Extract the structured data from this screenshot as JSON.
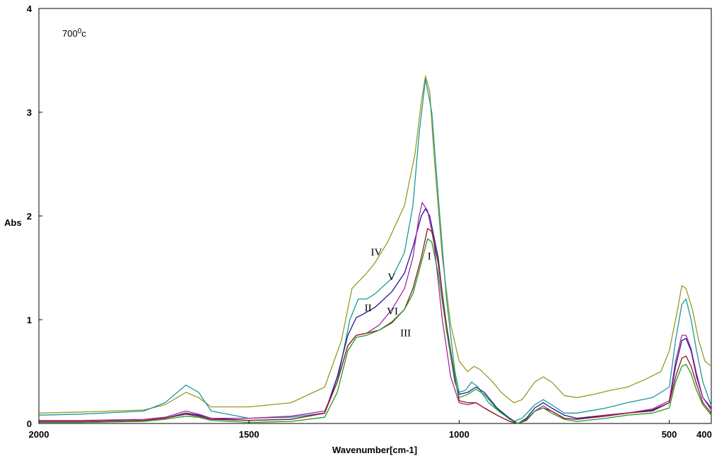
{
  "chart_data": {
    "type": "line",
    "title": "",
    "xlabel": "Wavenumber[cm-1]",
    "ylabel": "Abs",
    "xlim": [
      2000,
      400
    ],
    "ylim": [
      0,
      4
    ],
    "x_reversed": true,
    "grid": false,
    "temperature_label": "700",
    "temperature_sup": "0",
    "temperature_unit": "c",
    "x_ticks": [
      2000,
      1500,
      1000,
      500,
      400
    ],
    "y_ticks": [
      0,
      1,
      2,
      3,
      4
    ],
    "series": [
      {
        "color": "#999922",
        "points": [
          [
            2000,
            0.1
          ],
          [
            1900,
            0.11
          ],
          [
            1750,
            0.13
          ],
          [
            1700,
            0.18
          ],
          [
            1650,
            0.3
          ],
          [
            1620,
            0.25
          ],
          [
            1590,
            0.16
          ],
          [
            1500,
            0.16
          ],
          [
            1400,
            0.2
          ],
          [
            1320,
            0.35
          ],
          [
            1280,
            0.8
          ],
          [
            1255,
            1.3
          ],
          [
            1220,
            1.45
          ],
          [
            1200,
            1.55
          ],
          [
            1170,
            1.75
          ],
          [
            1130,
            2.1
          ],
          [
            1105,
            2.6
          ],
          [
            1090,
            3.1
          ],
          [
            1080,
            3.35
          ],
          [
            1070,
            3.2
          ],
          [
            1060,
            2.6
          ],
          [
            1040,
            1.6
          ],
          [
            1020,
            0.95
          ],
          [
            1000,
            0.6
          ],
          [
            980,
            0.5
          ],
          [
            965,
            0.55
          ],
          [
            950,
            0.52
          ],
          [
            920,
            0.4
          ],
          [
            900,
            0.3
          ],
          [
            870,
            0.2
          ],
          [
            850,
            0.23
          ],
          [
            820,
            0.4
          ],
          [
            800,
            0.45
          ],
          [
            780,
            0.4
          ],
          [
            750,
            0.27
          ],
          [
            720,
            0.25
          ],
          [
            680,
            0.28
          ],
          [
            640,
            0.32
          ],
          [
            600,
            0.35
          ],
          [
            560,
            0.42
          ],
          [
            520,
            0.5
          ],
          [
            500,
            0.7
          ],
          [
            480,
            1.1
          ],
          [
            470,
            1.33
          ],
          [
            460,
            1.3
          ],
          [
            445,
            1.1
          ],
          [
            430,
            0.8
          ],
          [
            415,
            0.6
          ],
          [
            400,
            0.55
          ]
        ]
      },
      {
        "color": "#1a9999",
        "points": [
          [
            2000,
            0.08
          ],
          [
            1900,
            0.09
          ],
          [
            1750,
            0.12
          ],
          [
            1700,
            0.2
          ],
          [
            1650,
            0.37
          ],
          [
            1620,
            0.3
          ],
          [
            1590,
            0.12
          ],
          [
            1500,
            0.05
          ],
          [
            1400,
            0.06
          ],
          [
            1320,
            0.1
          ],
          [
            1285,
            0.5
          ],
          [
            1260,
            1.0
          ],
          [
            1240,
            1.2
          ],
          [
            1220,
            1.2
          ],
          [
            1200,
            1.25
          ],
          [
            1160,
            1.4
          ],
          [
            1130,
            1.65
          ],
          [
            1110,
            2.1
          ],
          [
            1095,
            2.8
          ],
          [
            1080,
            3.32
          ],
          [
            1065,
            3.0
          ],
          [
            1050,
            2.2
          ],
          [
            1030,
            1.2
          ],
          [
            1010,
            0.5
          ],
          [
            1000,
            0.3
          ],
          [
            985,
            0.32
          ],
          [
            970,
            0.4
          ],
          [
            955,
            0.35
          ],
          [
            930,
            0.2
          ],
          [
            900,
            0.1
          ],
          [
            870,
            0.02
          ],
          [
            850,
            0.05
          ],
          [
            820,
            0.18
          ],
          [
            800,
            0.23
          ],
          [
            780,
            0.18
          ],
          [
            750,
            0.1
          ],
          [
            720,
            0.1
          ],
          [
            650,
            0.15
          ],
          [
            600,
            0.2
          ],
          [
            540,
            0.25
          ],
          [
            500,
            0.35
          ],
          [
            485,
            0.8
          ],
          [
            470,
            1.15
          ],
          [
            460,
            1.2
          ],
          [
            448,
            1.0
          ],
          [
            435,
            0.7
          ],
          [
            420,
            0.4
          ],
          [
            400,
            0.17
          ]
        ]
      },
      {
        "color": "#1a1a8c",
        "points": [
          [
            2000,
            0.02
          ],
          [
            1900,
            0.02
          ],
          [
            1750,
            0.03
          ],
          [
            1700,
            0.05
          ],
          [
            1650,
            0.1
          ],
          [
            1620,
            0.08
          ],
          [
            1590,
            0.05
          ],
          [
            1500,
            0.03
          ],
          [
            1400,
            0.04
          ],
          [
            1320,
            0.1
          ],
          [
            1290,
            0.45
          ],
          [
            1265,
            0.85
          ],
          [
            1245,
            1.02
          ],
          [
            1230,
            1.05
          ],
          [
            1200,
            1.12
          ],
          [
            1160,
            1.27
          ],
          [
            1130,
            1.45
          ],
          [
            1110,
            1.7
          ],
          [
            1090,
            2.0
          ],
          [
            1080,
            2.07
          ],
          [
            1070,
            2.0
          ],
          [
            1050,
            1.6
          ],
          [
            1030,
            0.9
          ],
          [
            1010,
            0.4
          ],
          [
            1000,
            0.28
          ],
          [
            980,
            0.3
          ],
          [
            960,
            0.35
          ],
          [
            940,
            0.3
          ],
          [
            910,
            0.15
          ],
          [
            880,
            0.05
          ],
          [
            860,
            0.0
          ],
          [
            840,
            0.05
          ],
          [
            820,
            0.15
          ],
          [
            800,
            0.2
          ],
          [
            780,
            0.15
          ],
          [
            750,
            0.08
          ],
          [
            720,
            0.05
          ],
          [
            650,
            0.08
          ],
          [
            600,
            0.1
          ],
          [
            540,
            0.13
          ],
          [
            500,
            0.2
          ],
          [
            485,
            0.55
          ],
          [
            470,
            0.8
          ],
          [
            460,
            0.82
          ],
          [
            448,
            0.7
          ],
          [
            435,
            0.45
          ],
          [
            420,
            0.25
          ],
          [
            400,
            0.15
          ]
        ]
      },
      {
        "color": "#aa22aa",
        "points": [
          [
            2000,
            0.03
          ],
          [
            1900,
            0.03
          ],
          [
            1750,
            0.04
          ],
          [
            1700,
            0.06
          ],
          [
            1650,
            0.12
          ],
          [
            1620,
            0.09
          ],
          [
            1590,
            0.05
          ],
          [
            1500,
            0.05
          ],
          [
            1400,
            0.07
          ],
          [
            1320,
            0.12
          ],
          [
            1290,
            0.4
          ],
          [
            1265,
            0.75
          ],
          [
            1245,
            0.85
          ],
          [
            1220,
            0.87
          ],
          [
            1190,
            0.95
          ],
          [
            1160,
            1.1
          ],
          [
            1130,
            1.3
          ],
          [
            1110,
            1.6
          ],
          [
            1095,
            2.0
          ],
          [
            1088,
            2.13
          ],
          [
            1075,
            2.05
          ],
          [
            1060,
            1.75
          ],
          [
            1040,
            1.0
          ],
          [
            1020,
            0.45
          ],
          [
            1000,
            0.2
          ],
          [
            980,
            0.18
          ],
          [
            960,
            0.2
          ],
          [
            940,
            0.15
          ],
          [
            910,
            0.08
          ],
          [
            880,
            0.02
          ],
          [
            860,
            0.0
          ],
          [
            840,
            0.03
          ],
          [
            820,
            0.12
          ],
          [
            800,
            0.17
          ],
          [
            780,
            0.12
          ],
          [
            750,
            0.05
          ],
          [
            720,
            0.04
          ],
          [
            650,
            0.07
          ],
          [
            600,
            0.1
          ],
          [
            540,
            0.14
          ],
          [
            500,
            0.22
          ],
          [
            485,
            0.6
          ],
          [
            470,
            0.85
          ],
          [
            460,
            0.85
          ],
          [
            448,
            0.72
          ],
          [
            435,
            0.48
          ],
          [
            420,
            0.25
          ],
          [
            400,
            0.13
          ]
        ]
      },
      {
        "color": "#8c1a1a",
        "points": [
          [
            2000,
            0.02
          ],
          [
            1900,
            0.02
          ],
          [
            1750,
            0.03
          ],
          [
            1700,
            0.05
          ],
          [
            1650,
            0.09
          ],
          [
            1620,
            0.07
          ],
          [
            1590,
            0.04
          ],
          [
            1500,
            0.03
          ],
          [
            1400,
            0.04
          ],
          [
            1320,
            0.1
          ],
          [
            1290,
            0.4
          ],
          [
            1265,
            0.75
          ],
          [
            1245,
            0.85
          ],
          [
            1220,
            0.87
          ],
          [
            1190,
            0.9
          ],
          [
            1160,
            0.97
          ],
          [
            1130,
            1.1
          ],
          [
            1110,
            1.3
          ],
          [
            1090,
            1.6
          ],
          [
            1075,
            1.88
          ],
          [
            1065,
            1.85
          ],
          [
            1050,
            1.55
          ],
          [
            1030,
            0.95
          ],
          [
            1010,
            0.45
          ],
          [
            1000,
            0.22
          ],
          [
            980,
            0.2
          ],
          [
            960,
            0.2
          ],
          [
            940,
            0.15
          ],
          [
            910,
            0.08
          ],
          [
            880,
            0.02
          ],
          [
            860,
            0.0
          ],
          [
            840,
            0.03
          ],
          [
            820,
            0.12
          ],
          [
            800,
            0.15
          ],
          [
            780,
            0.12
          ],
          [
            750,
            0.05
          ],
          [
            720,
            0.04
          ],
          [
            650,
            0.08
          ],
          [
            600,
            0.1
          ],
          [
            540,
            0.12
          ],
          [
            500,
            0.2
          ],
          [
            485,
            0.45
          ],
          [
            470,
            0.63
          ],
          [
            460,
            0.65
          ],
          [
            448,
            0.55
          ],
          [
            435,
            0.38
          ],
          [
            420,
            0.2
          ],
          [
            400,
            0.1
          ]
        ]
      },
      {
        "color": "#229922",
        "points": [
          [
            2000,
            0.01
          ],
          [
            1900,
            0.01
          ],
          [
            1750,
            0.02
          ],
          [
            1700,
            0.04
          ],
          [
            1650,
            0.07
          ],
          [
            1620,
            0.06
          ],
          [
            1590,
            0.03
          ],
          [
            1500,
            0.01
          ],
          [
            1400,
            0.02
          ],
          [
            1320,
            0.06
          ],
          [
            1290,
            0.3
          ],
          [
            1265,
            0.7
          ],
          [
            1245,
            0.83
          ],
          [
            1220,
            0.85
          ],
          [
            1190,
            0.9
          ],
          [
            1160,
            0.98
          ],
          [
            1130,
            1.1
          ],
          [
            1110,
            1.25
          ],
          [
            1090,
            1.55
          ],
          [
            1075,
            1.78
          ],
          [
            1065,
            1.75
          ],
          [
            1050,
            1.45
          ],
          [
            1030,
            0.9
          ],
          [
            1010,
            0.42
          ],
          [
            1000,
            0.25
          ],
          [
            980,
            0.28
          ],
          [
            960,
            0.33
          ],
          [
            940,
            0.28
          ],
          [
            910,
            0.14
          ],
          [
            880,
            0.04
          ],
          [
            860,
            0.0
          ],
          [
            840,
            0.04
          ],
          [
            820,
            0.12
          ],
          [
            800,
            0.15
          ],
          [
            780,
            0.1
          ],
          [
            750,
            0.04
          ],
          [
            720,
            0.02
          ],
          [
            650,
            0.05
          ],
          [
            600,
            0.08
          ],
          [
            540,
            0.1
          ],
          [
            500,
            0.15
          ],
          [
            485,
            0.4
          ],
          [
            470,
            0.55
          ],
          [
            460,
            0.57
          ],
          [
            448,
            0.48
          ],
          [
            435,
            0.32
          ],
          [
            420,
            0.18
          ],
          [
            400,
            0.08
          ]
        ]
      }
    ],
    "annotations": [
      {
        "text": "IV",
        "x": 1210,
        "y": 1.62
      },
      {
        "text": "V",
        "x": 1170,
        "y": 1.38
      },
      {
        "text": "II",
        "x": 1225,
        "y": 1.08
      },
      {
        "text": "VI",
        "x": 1172,
        "y": 1.05
      },
      {
        "text": "III",
        "x": 1140,
        "y": 0.84
      },
      {
        "text": "I",
        "x": 1075,
        "y": 1.58
      }
    ]
  }
}
